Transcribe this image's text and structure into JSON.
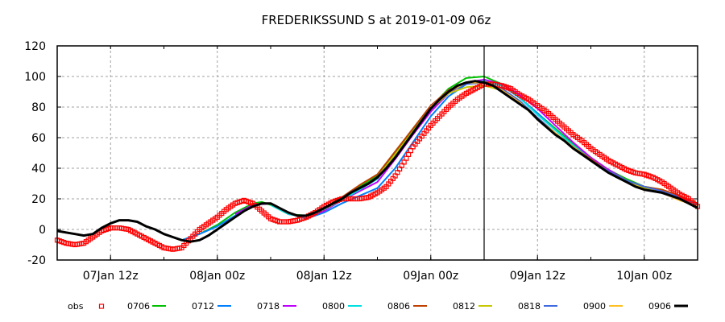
{
  "chart_data": {
    "type": "line",
    "title": "FREDERIKSSUND S at 2019-01-09 06z",
    "xlabel": "",
    "ylabel": "",
    "x_unit": "hours since 07Jan 06z",
    "xlim": [
      0,
      72
    ],
    "ylim": [
      -20,
      120
    ],
    "yticks": [
      -20,
      0,
      20,
      40,
      60,
      80,
      100,
      120
    ],
    "xticks": [
      {
        "x": 6,
        "label": "07Jan 12z"
      },
      {
        "x": 18,
        "label": "08Jan 00z"
      },
      {
        "x": 30,
        "label": "08Jan 12z"
      },
      {
        "x": 42,
        "label": "09Jan 00z"
      },
      {
        "x": 54,
        "label": "09Jan 12z"
      },
      {
        "x": 66,
        "label": "10Jan 00z"
      }
    ],
    "minor_xtick_step_hours": 6,
    "grid": true,
    "analysis_time_marker": {
      "x": 48,
      "label": "09Jan 06z"
    },
    "legend_position": "bottom",
    "series": [
      {
        "name": "obs",
        "color": "#ff0000",
        "style": "points",
        "x": [
          0,
          1,
          2,
          3,
          4,
          5,
          6,
          7,
          8,
          9,
          10,
          11,
          12,
          13,
          14,
          15,
          16,
          17,
          18,
          19,
          20,
          21,
          22,
          23,
          24,
          25,
          26,
          27,
          28,
          29,
          30,
          31,
          32,
          33,
          34,
          35,
          36,
          37,
          38,
          39,
          40,
          41,
          42,
          43,
          44,
          45,
          46,
          47,
          48,
          49,
          50,
          51,
          52,
          53,
          54,
          55,
          56,
          57,
          58,
          59,
          60,
          61,
          62,
          63,
          64,
          65,
          66,
          67,
          68,
          69,
          70,
          71,
          72
        ],
        "y": [
          -7,
          -9,
          -10,
          -9,
          -5,
          -1,
          1,
          1,
          0,
          -3,
          -6,
          -9,
          -12,
          -13,
          -12,
          -6,
          0,
          4,
          8,
          13,
          17,
          19,
          17,
          12,
          7,
          5,
          5,
          6,
          8,
          11,
          15,
          18,
          20,
          20,
          20,
          21,
          24,
          28,
          35,
          44,
          54,
          61,
          68,
          74,
          80,
          85,
          89,
          92,
          95,
          95,
          94,
          92,
          88,
          85,
          81,
          77,
          72,
          67,
          62,
          58,
          53,
          49,
          45,
          42,
          39,
          37,
          36,
          34,
          31,
          27,
          23,
          20,
          15
        ]
      },
      {
        "name": "0706",
        "color": "#00c000",
        "style": "line",
        "x": [
          14,
          16,
          18,
          20,
          22,
          23,
          24,
          26,
          28,
          30,
          32,
          34,
          36,
          38,
          40,
          42,
          44,
          46,
          48,
          50,
          52,
          54,
          56,
          58,
          60,
          62,
          64,
          66,
          68,
          70,
          72
        ],
        "y": [
          -7,
          -3,
          3,
          11,
          17,
          18,
          16,
          10,
          9,
          14,
          21,
          28,
          35,
          50,
          65,
          80,
          92,
          99,
          100,
          95,
          86,
          76,
          66,
          56,
          47,
          39,
          33,
          28,
          26,
          21,
          16
        ]
      },
      {
        "name": "0712",
        "color": "#0080ff",
        "style": "line",
        "x": [
          14,
          16,
          18,
          20,
          22,
          23,
          24,
          26,
          28,
          30,
          32,
          34,
          36,
          38,
          40,
          42,
          44,
          46,
          48,
          50,
          52,
          54,
          56,
          58,
          60,
          62,
          64,
          66,
          68,
          70,
          72
        ],
        "y": [
          -7,
          -3,
          2,
          9,
          15,
          17,
          17,
          11,
          7,
          11,
          17,
          22,
          27,
          40,
          57,
          74,
          87,
          95,
          97,
          94,
          86,
          76,
          65,
          55,
          46,
          38,
          32,
          27,
          25,
          21,
          16
        ]
      },
      {
        "name": "0718",
        "color": "#c000ff",
        "style": "line",
        "x": [
          20,
          22,
          24,
          26,
          28,
          30,
          32,
          34,
          36,
          38,
          40,
          42,
          44,
          46,
          48,
          50,
          52,
          54,
          56,
          58,
          60,
          62,
          64,
          66,
          68,
          70,
          72
        ],
        "y": [
          10,
          16,
          17,
          10,
          8,
          12,
          19,
          25,
          31,
          46,
          62,
          77,
          89,
          96,
          98,
          95,
          88,
          79,
          68,
          57,
          47,
          39,
          32,
          27,
          25,
          21,
          16
        ]
      },
      {
        "name": "0800",
        "color": "#00e0e0",
        "style": "line",
        "x": [
          24,
          26,
          28,
          30,
          32,
          34,
          36,
          38,
          40,
          42,
          44,
          46,
          48,
          50,
          52,
          54,
          56,
          58,
          60,
          62,
          64,
          66,
          68,
          70,
          72
        ],
        "y": [
          16,
          10,
          8,
          13,
          19,
          26,
          33,
          48,
          64,
          79,
          90,
          96,
          97,
          94,
          86,
          75,
          65,
          55,
          46,
          38,
          32,
          27,
          25,
          21,
          16
        ]
      },
      {
        "name": "0806",
        "color": "#c04000",
        "style": "line",
        "x": [
          30,
          32,
          34,
          36,
          38,
          40,
          42,
          44,
          46,
          48,
          50,
          52,
          54,
          56,
          58,
          60,
          62,
          64,
          66,
          68,
          70,
          72
        ],
        "y": [
          14,
          21,
          29,
          36,
          51,
          66,
          81,
          91,
          96,
          96,
          92,
          84,
          73,
          63,
          54,
          46,
          38,
          32,
          28,
          26,
          22,
          17
        ]
      },
      {
        "name": "0812",
        "color": "#c8c800",
        "style": "line",
        "x": [
          36,
          38,
          40,
          42,
          44,
          46,
          48,
          50,
          52,
          54,
          56,
          58,
          60,
          62,
          64,
          66,
          68,
          70,
          72
        ],
        "y": [
          34,
          49,
          64,
          79,
          89,
          93,
          94,
          91,
          84,
          73,
          63,
          54,
          45,
          37,
          31,
          27,
          24,
          20,
          16
        ]
      },
      {
        "name": "0818",
        "color": "#4169e1",
        "style": "line",
        "x": [
          42,
          44,
          46,
          48,
          50,
          52,
          54,
          56,
          58,
          60,
          62,
          64,
          66,
          68,
          70,
          72
        ],
        "y": [
          80,
          90,
          95,
          96,
          92,
          84,
          73,
          63,
          54,
          45,
          38,
          32,
          28,
          25,
          21,
          16
        ]
      },
      {
        "name": "0900",
        "color": "#ffc020",
        "style": "line",
        "x": [
          42,
          44,
          46,
          48,
          50,
          52,
          54,
          56,
          58,
          60,
          62,
          64,
          66,
          68,
          70,
          72
        ],
        "y": [
          80,
          90,
          96,
          96,
          91,
          83,
          72,
          63,
          54,
          45,
          37,
          31,
          26,
          24,
          19,
          15
        ]
      },
      {
        "name": "0906",
        "color": "#000000",
        "style": "line-bold",
        "x": [
          0,
          1,
          2,
          3,
          4,
          5,
          6,
          7,
          8,
          9,
          10,
          11,
          12,
          13,
          14,
          15,
          16,
          17,
          18,
          19,
          20,
          21,
          22,
          23,
          24,
          25,
          26,
          27,
          28,
          29,
          30,
          31,
          32,
          33,
          34,
          35,
          36,
          37,
          38,
          39,
          40,
          41,
          42,
          43,
          44,
          45,
          46,
          47,
          48,
          49,
          50,
          51,
          52,
          53,
          54,
          55,
          56,
          57,
          58,
          59,
          60,
          61,
          62,
          63,
          64,
          65,
          66,
          67,
          68,
          69,
          70,
          71,
          72
        ],
        "y": [
          -1,
          -2,
          -3,
          -4,
          -3,
          1,
          4,
          6,
          6,
          5,
          2,
          0,
          -3,
          -5,
          -7,
          -8,
          -7,
          -4,
          0,
          4,
          8,
          12,
          15,
          17,
          17,
          14,
          11,
          9,
          9,
          11,
          14,
          17,
          20,
          24,
          27,
          30,
          34,
          40,
          47,
          55,
          63,
          71,
          79,
          85,
          90,
          94,
          96,
          97,
          96,
          94,
          90,
          86,
          82,
          78,
          72,
          67,
          62,
          58,
          53,
          49,
          45,
          41,
          37,
          34,
          31,
          28,
          26,
          25,
          24,
          22,
          20,
          17,
          14
        ]
      }
    ]
  }
}
